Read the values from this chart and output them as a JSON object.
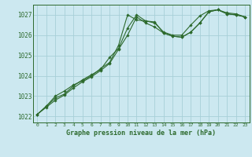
{
  "bg_color": "#cce8f0",
  "grid_color": "#a8cfd8",
  "line_color": "#2d6a2d",
  "marker_color": "#2d6a2d",
  "title": "Graphe pression niveau de la mer (hPa)",
  "xlim": [
    -0.5,
    23.5
  ],
  "ylim": [
    1021.7,
    1027.5
  ],
  "yticks": [
    1022,
    1023,
    1024,
    1025,
    1026,
    1027
  ],
  "xticks": [
    0,
    1,
    2,
    3,
    4,
    5,
    6,
    7,
    8,
    9,
    10,
    11,
    12,
    13,
    14,
    15,
    16,
    17,
    18,
    19,
    20,
    21,
    22,
    23
  ],
  "series": [
    [
      1022.1,
      1022.5,
      1022.9,
      1023.1,
      1023.5,
      1023.8,
      1024.05,
      1024.3,
      1024.9,
      1025.35,
      1026.35,
      1027.0,
      1026.7,
      1026.65,
      1026.1,
      1025.95,
      1025.9,
      1026.15,
      1026.6,
      1027.15,
      1027.25,
      1027.05,
      1027.0,
      1026.9
    ],
    [
      1022.1,
      1022.5,
      1023.0,
      1023.25,
      1023.55,
      1023.75,
      1024.0,
      1024.35,
      1024.65,
      1025.5,
      1027.0,
      1026.75,
      1026.7,
      1026.6,
      1026.15,
      1026.0,
      1026.0,
      1026.5,
      1026.95,
      1027.2,
      1027.25,
      1027.1,
      1027.05,
      1026.9
    ],
    [
      1022.1,
      1022.45,
      1022.8,
      1023.05,
      1023.4,
      1023.7,
      1023.95,
      1024.25,
      1024.6,
      1025.3,
      1026.0,
      1026.9,
      1026.6,
      1026.4,
      1026.1,
      1025.95,
      1025.9,
      1026.15,
      1026.6,
      1027.15,
      1027.25,
      1027.05,
      1027.0,
      1026.9
    ]
  ]
}
